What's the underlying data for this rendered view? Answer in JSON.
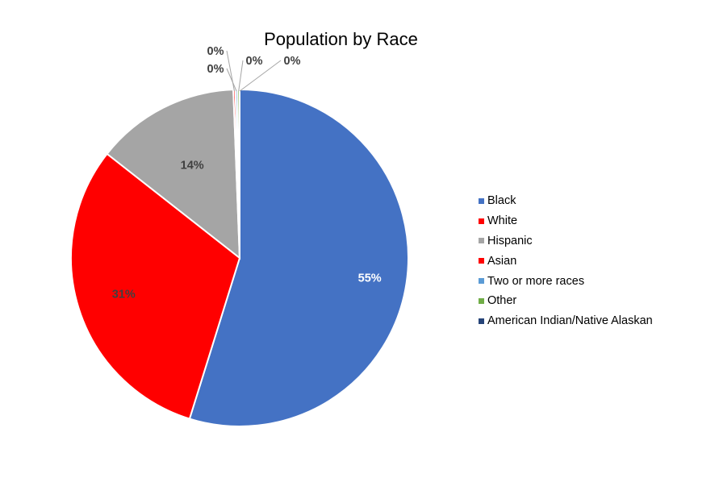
{
  "chart_data": {
    "type": "pie",
    "title": "Population by Race",
    "slices": [
      {
        "label": "Black",
        "value": 54.8,
        "display": "55%",
        "color": "#4472C4"
      },
      {
        "label": "White",
        "value": 30.8,
        "display": "31%",
        "color": "#FF0000"
      },
      {
        "label": "Hispanic",
        "value": 13.8,
        "display": "14%",
        "color": "#A5A5A5"
      },
      {
        "label": "Asian",
        "value": 0.2,
        "display": "0%",
        "color": "#FF0000"
      },
      {
        "label": "Two or more races",
        "value": 0.2,
        "display": "0%",
        "color": "#5B9BD5"
      },
      {
        "label": "Other",
        "value": 0.2,
        "display": "0%",
        "color": "#70AD47"
      },
      {
        "label": "American Indian/Native Alaskan",
        "value": 0.0,
        "display": "0%",
        "color": "#264478"
      }
    ],
    "legend_position": "right"
  }
}
